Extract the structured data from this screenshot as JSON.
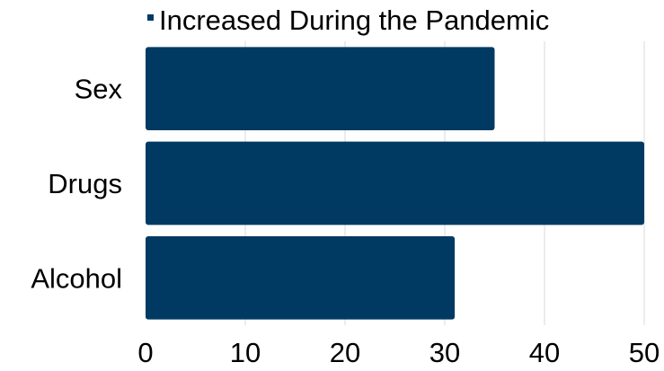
{
  "chart_data": {
    "type": "bar",
    "orientation": "horizontal",
    "categories": [
      "Sex",
      "Drugs",
      "Alcohol"
    ],
    "series": [
      {
        "name": "Increased During the Pandemic",
        "values": [
          35,
          50,
          31
        ],
        "color": "#003a63"
      }
    ],
    "xlim": [
      0,
      50
    ],
    "xticks": [
      0,
      10,
      20,
      30,
      40,
      50
    ],
    "grid": "vertical",
    "legend": "top"
  }
}
